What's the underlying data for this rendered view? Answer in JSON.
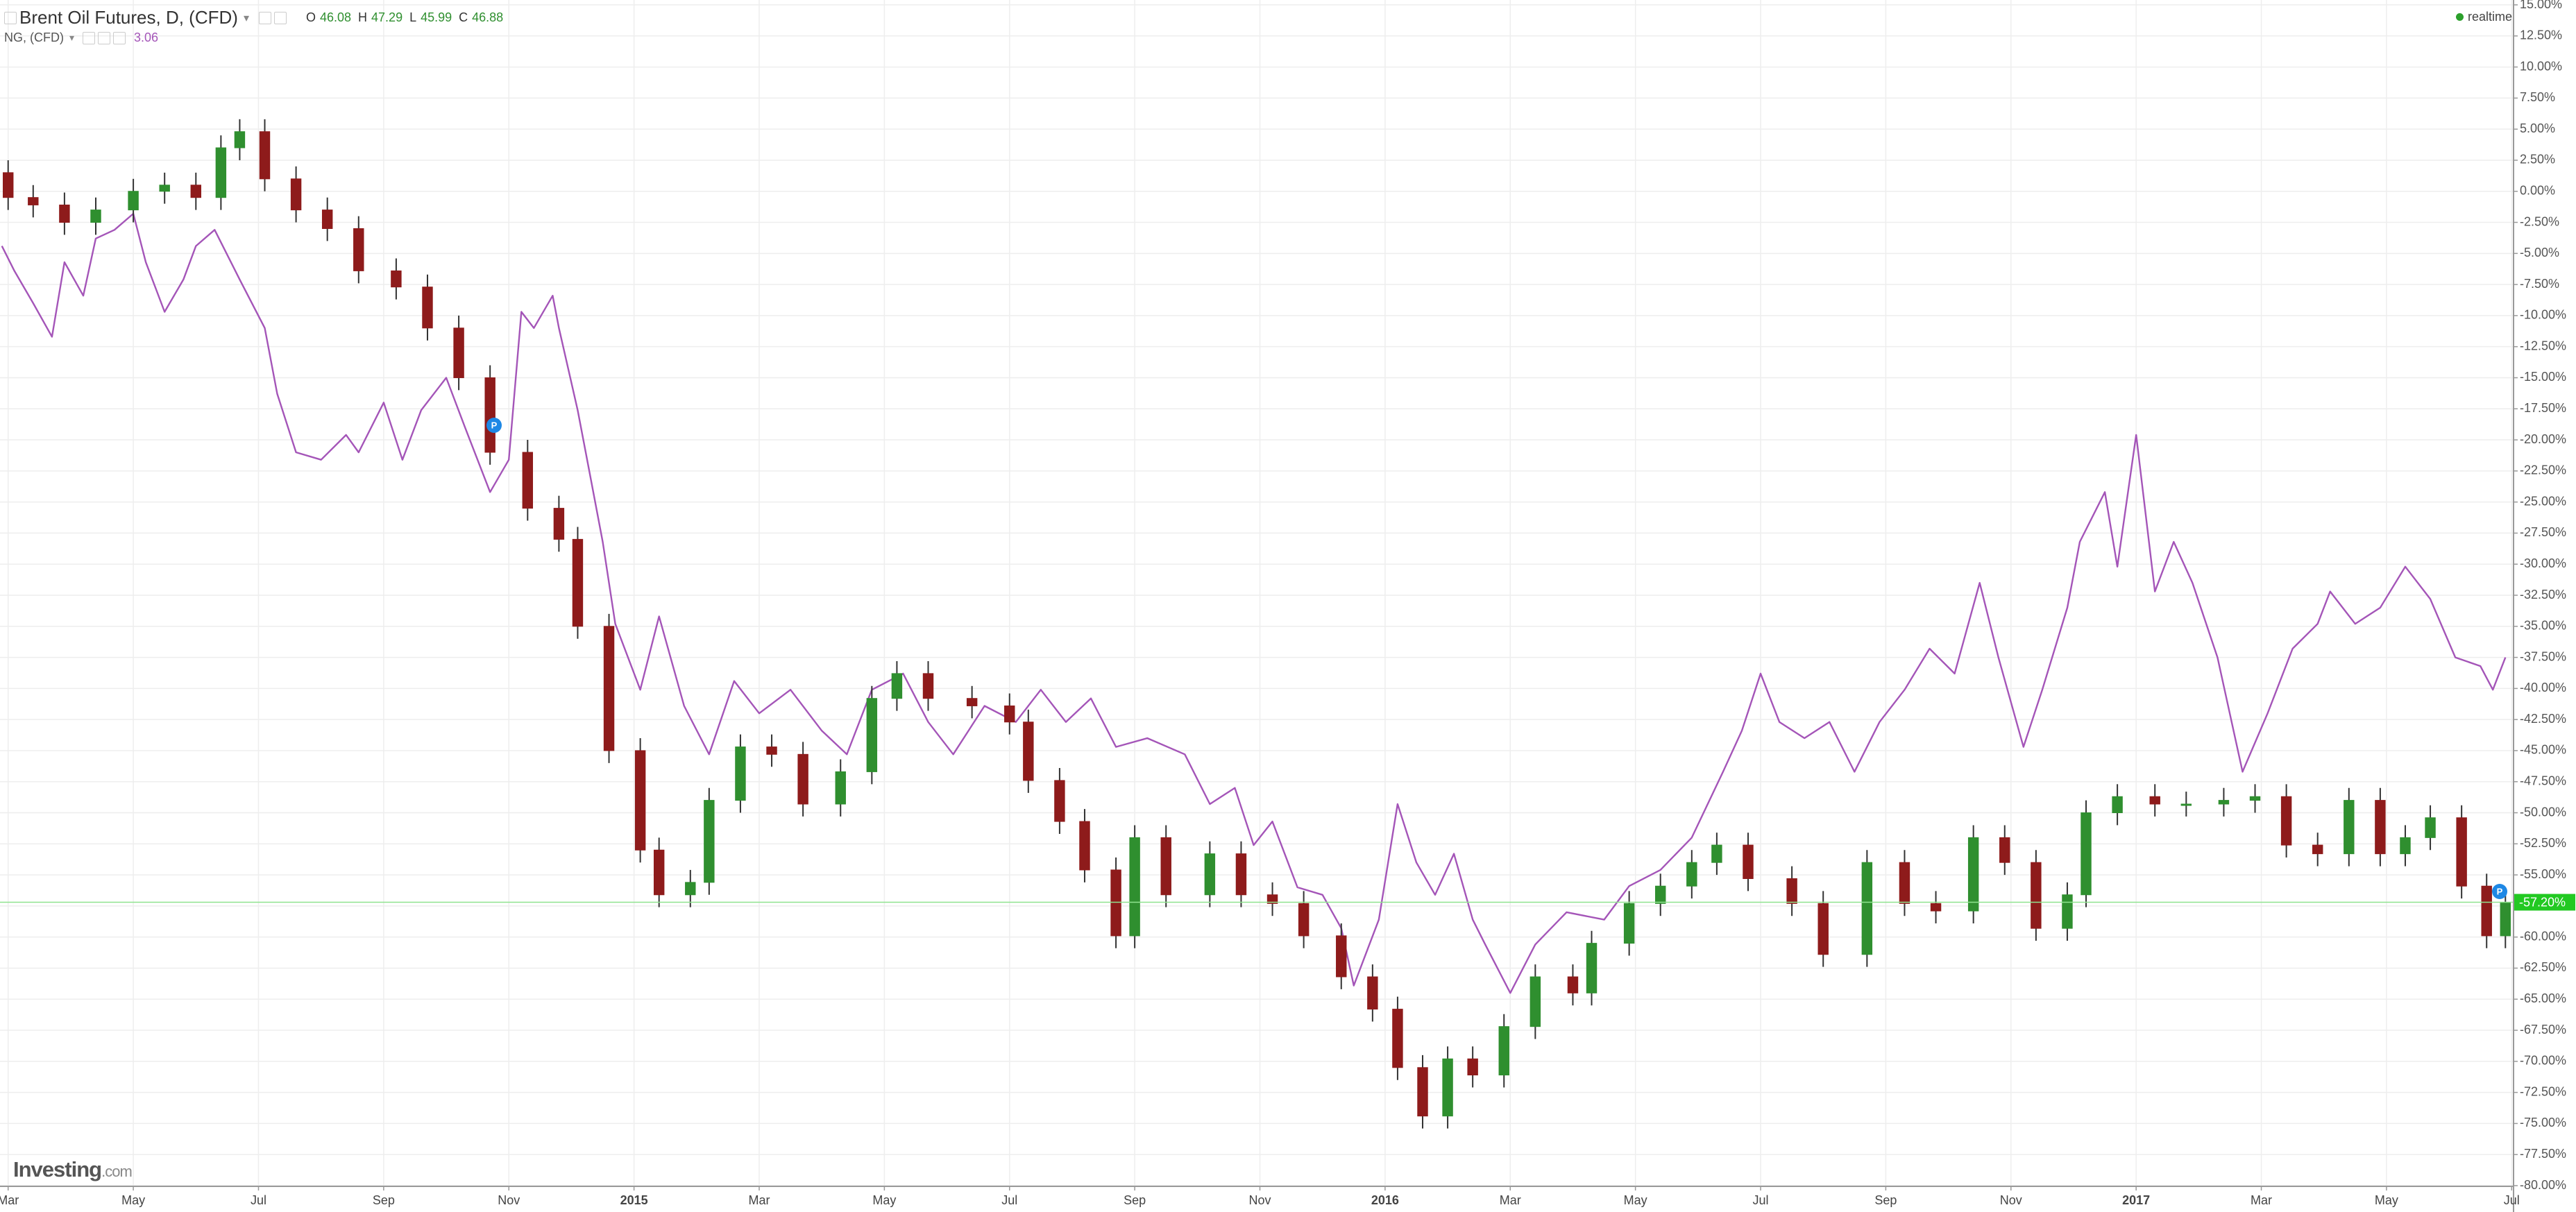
{
  "chart_data": {
    "type": "candlestick",
    "status": "realtime",
    "watermark": [
      "Investing",
      ".com"
    ],
    "xlim": [
      -0.13,
      40.03
    ],
    "xticks": [
      {
        "value": 0,
        "label": "Mar"
      },
      {
        "value": 2,
        "label": "May"
      },
      {
        "value": 4,
        "label": "Jul"
      },
      {
        "value": 6,
        "label": "Sep"
      },
      {
        "value": 8,
        "label": "Nov"
      },
      {
        "value": 10,
        "label": "2015"
      },
      {
        "value": 12,
        "label": "Mar"
      },
      {
        "value": 14,
        "label": "May"
      },
      {
        "value": 16,
        "label": "Jul"
      },
      {
        "value": 18,
        "label": "Sep"
      },
      {
        "value": 20,
        "label": "Nov"
      },
      {
        "value": 22,
        "label": "2016"
      },
      {
        "value": 24,
        "label": "Mar"
      },
      {
        "value": 26,
        "label": "May"
      },
      {
        "value": 28,
        "label": "Jul"
      },
      {
        "value": 30,
        "label": "Sep"
      },
      {
        "value": 32,
        "label": "Nov"
      },
      {
        "value": 34,
        "label": "2017"
      },
      {
        "value": 36,
        "label": "Mar"
      },
      {
        "value": 38,
        "label": "May"
      },
      {
        "value": 40,
        "label": "Jul"
      }
    ],
    "ylim": [
      -80,
      15
    ],
    "yticks": [
      {
        "value": 15,
        "label": "15.00%"
      },
      {
        "value": 12.5,
        "label": "12.50%"
      },
      {
        "value": 10,
        "label": "10.00%"
      },
      {
        "value": 7.5,
        "label": "7.50%"
      },
      {
        "value": 5,
        "label": "5.00%"
      },
      {
        "value": 2.5,
        "label": "2.50%"
      },
      {
        "value": 0,
        "label": "0.00%"
      },
      {
        "value": -2.5,
        "label": "-2.50%"
      },
      {
        "value": -5,
        "label": "-5.00%"
      },
      {
        "value": -7.5,
        "label": "-7.50%"
      },
      {
        "value": -10,
        "label": "-10.00%"
      },
      {
        "value": -12.5,
        "label": "-12.50%"
      },
      {
        "value": -15,
        "label": "-15.00%"
      },
      {
        "value": -17.5,
        "label": "-17.50%"
      },
      {
        "value": -20,
        "label": "-20.00%"
      },
      {
        "value": -22.5,
        "label": "-22.50%"
      },
      {
        "value": -25,
        "label": "-25.00%"
      },
      {
        "value": -27.5,
        "label": "-27.50%"
      },
      {
        "value": -30,
        "label": "-30.00%"
      },
      {
        "value": -32.5,
        "label": "-32.50%"
      },
      {
        "value": -35,
        "label": "-35.00%"
      },
      {
        "value": -37.5,
        "label": "-37.50%"
      },
      {
        "value": -40,
        "label": "-40.00%"
      },
      {
        "value": -42.5,
        "label": "-42.50%"
      },
      {
        "value": -45,
        "label": "-45.00%"
      },
      {
        "value": -47.5,
        "label": "-47.50%"
      },
      {
        "value": -50,
        "label": "-50.00%"
      },
      {
        "value": -52.5,
        "label": "-52.50%"
      },
      {
        "value": -55,
        "label": "-55.00%"
      },
      {
        "value": -57.5,
        "label": "-57.50%"
      },
      {
        "value": -60,
        "label": "-60.00%"
      },
      {
        "value": -62.5,
        "label": "-62.50%"
      },
      {
        "value": -65,
        "label": "-65.00%"
      },
      {
        "value": -67.5,
        "label": "-67.50%"
      },
      {
        "value": -70,
        "label": "-70.00%"
      },
      {
        "value": -72.5,
        "label": "-72.50%"
      },
      {
        "value": -75,
        "label": "-75.00%"
      },
      {
        "value": -77.5,
        "label": "-77.50%"
      },
      {
        "value": -80,
        "label": "-80.00%"
      }
    ],
    "grid": true,
    "series": [
      {
        "type": "candlestick",
        "name": "Brent Oil Futures, D, (CFD)",
        "up_color": "#2f8f2f",
        "down_color": "#8e1b1b",
        "last_color": "#22c922",
        "quote": [
          {
            "label": "O",
            "value": 46.08
          },
          {
            "label": "H",
            "value": 47.29
          },
          {
            "label": "L",
            "value": 45.99
          },
          {
            "label": "C",
            "value": 46.88
          }
        ],
        "last_label": "-57.20%",
        "x": [
          0.0,
          0.4,
          0.9,
          1.4,
          2.0,
          2.5,
          3.0,
          3.4,
          3.7,
          4.1,
          4.6,
          5.1,
          5.6,
          6.2,
          6.7,
          7.2,
          7.7,
          8.3,
          8.8,
          9.1,
          9.6,
          10.1,
          10.4,
          10.9,
          11.2,
          11.7,
          12.2,
          12.7,
          13.3,
          13.8,
          14.2,
          14.7,
          15.4,
          16.0,
          16.3,
          16.8,
          17.2,
          17.7,
          18.0,
          18.5,
          19.2,
          19.7,
          20.2,
          20.7,
          21.3,
          21.8,
          22.2,
          22.6,
          23.0,
          23.4,
          23.9,
          24.4,
          25.0,
          25.3,
          25.9,
          26.4,
          26.9,
          27.3,
          27.8,
          28.5,
          29.0,
          29.7,
          30.3,
          30.8,
          31.4,
          31.9,
          32.4,
          32.9,
          33.2,
          33.7,
          34.3,
          34.8,
          35.4,
          35.9,
          36.4,
          36.9,
          37.4,
          37.9,
          38.3,
          38.7,
          39.2,
          39.6,
          39.9
        ],
        "open": [
          1.5,
          -0.5,
          -1.1,
          -2.5,
          -1.5,
          0,
          0.5,
          -0.5,
          3.5,
          4.8,
          1,
          -1.5,
          -3,
          -6.4,
          -7.7,
          -11,
          -15,
          -21,
          -25.5,
          -28,
          -35,
          -45,
          -53,
          -56.6,
          -55.6,
          -49,
          -44.7,
          -45.3,
          -49.3,
          -46.7,
          -40.8,
          -38.8,
          -40.8,
          -41.4,
          -42.7,
          -47.4,
          -50.7,
          -54.6,
          -59.9,
          -52,
          -56.6,
          -53.3,
          -56.6,
          -57.3,
          -59.9,
          -63.2,
          -65.8,
          -70.5,
          -74.4,
          -69.8,
          -71.1,
          -67.2,
          -63.2,
          -64.5,
          -60.5,
          -57.3,
          -55.9,
          -54,
          -52.6,
          -55.3,
          -57.3,
          -61.4,
          -54,
          -57.3,
          -57.9,
          -52,
          -54,
          -59.3,
          -56.6,
          -50,
          -48.7,
          -49.3,
          -49.3,
          -49,
          -48.7,
          -52.6,
          -53.3,
          -49,
          -53.3,
          -52,
          -50.4,
          -55.9,
          -59.9
        ],
        "high": [
          2.5,
          0.5,
          -0.1,
          -0.5,
          1,
          1.5,
          1.5,
          4.5,
          5.8,
          5.8,
          2,
          -0.5,
          -2,
          -5.4,
          -6.7,
          -10,
          -14,
          -20,
          -24.5,
          -27,
          -34,
          -44,
          -52,
          -54.6,
          -48,
          -43.7,
          -43.7,
          -44.3,
          -45.7,
          -39.8,
          -37.8,
          -37.8,
          -39.8,
          -40.4,
          -41.7,
          -46.4,
          -49.7,
          -53.6,
          -51,
          -51,
          -52.3,
          -52.3,
          -55.6,
          -56.3,
          -58.9,
          -62.2,
          -64.8,
          -69.5,
          -68.8,
          -68.8,
          -66.2,
          -62.2,
          -62.2,
          -59.5,
          -56.3,
          -54.9,
          -53,
          -51.6,
          -51.6,
          -54.3,
          -56.3,
          -53,
          -53,
          -56.3,
          -51,
          -51,
          -53,
          -55.6,
          -49,
          -47.7,
          -47.7,
          -48.3,
          -48,
          -47.7,
          -47.7,
          -51.6,
          -48,
          -48,
          -51,
          -49.4,
          -49.4,
          -54.9,
          -56.2
        ],
        "low": [
          -1.5,
          -2.1,
          -3.5,
          -3.5,
          -2.5,
          -1,
          -1.5,
          -1.5,
          2.5,
          0,
          -2.5,
          -4,
          -7.4,
          -8.7,
          -12,
          -16,
          -22,
          -26.5,
          -29,
          -36,
          -46,
          -54,
          -57.6,
          -57.6,
          -56.6,
          -50,
          -46.3,
          -50.3,
          -50.3,
          -47.7,
          -41.8,
          -41.8,
          -42.4,
          -43.7,
          -48.4,
          -51.7,
          -55.6,
          -60.9,
          -60.9,
          -57.6,
          -57.6,
          -57.6,
          -58.3,
          -60.9,
          -64.2,
          -66.8,
          -71.5,
          -75.4,
          -75.4,
          -72.1,
          -72.1,
          -68.2,
          -65.5,
          -65.5,
          -61.5,
          -58.3,
          -56.9,
          -55,
          -56.3,
          -58.3,
          -62.4,
          -62.4,
          -58.3,
          -58.9,
          -58.9,
          -55,
          -60.3,
          -60.3,
          -57.6,
          -51,
          -50.3,
          -50.3,
          -50.3,
          -50,
          -53.6,
          -54.3,
          -54.3,
          -54.3,
          -54.3,
          -53,
          -56.9,
          -60.9,
          -60.9
        ],
        "close": [
          -0.5,
          -1.1,
          -2.5,
          -1.5,
          0,
          0.5,
          -0.5,
          3.5,
          4.8,
          1,
          -1.5,
          -3,
          -6.4,
          -7.7,
          -11,
          -15,
          -21,
          -25.5,
          -28,
          -35,
          -45,
          -53,
          -56.6,
          -55.6,
          -49,
          -44.7,
          -45.3,
          -49.3,
          -46.7,
          -40.8,
          -38.8,
          -40.8,
          -41.4,
          -42.7,
          -47.4,
          -50.7,
          -54.6,
          -59.9,
          -52,
          -56.6,
          -53.3,
          -56.6,
          -57.3,
          -59.9,
          -63.2,
          -65.8,
          -70.5,
          -74.4,
          -69.8,
          -71.1,
          -67.2,
          -63.2,
          -64.5,
          -60.5,
          -57.3,
          -55.9,
          -54,
          -52.6,
          -55.3,
          -57.3,
          -61.4,
          -54,
          -57.3,
          -57.9,
          -52,
          -54,
          -59.3,
          -56.6,
          -50,
          -48.7,
          -49.3,
          -49.3,
          -49,
          -48.7,
          -52.6,
          -53.3,
          -49,
          -53.3,
          -52,
          -50.4,
          -55.9,
          -59.9,
          -57.2
        ]
      },
      {
        "type": "line",
        "name": "NG, (CFD)",
        "color": "#a455b8",
        "last": 3.06,
        "x": [
          -0.1,
          0.1,
          0.4,
          0.7,
          0.9,
          1.2,
          1.4,
          1.7,
          2.0,
          2.2,
          2.5,
          2.8,
          3.0,
          3.3,
          3.7,
          4.1,
          4.3,
          4.6,
          5.0,
          5.4,
          5.6,
          6.0,
          6.3,
          6.6,
          7.0,
          7.3,
          7.7,
          8.0,
          8.2,
          8.4,
          8.7,
          8.8,
          9.1,
          9.3,
          9.5,
          9.7,
          10.1,
          10.4,
          10.8,
          11.2,
          11.6,
          12.0,
          12.5,
          13.0,
          13.4,
          13.8,
          14.3,
          14.7,
          15.1,
          15.6,
          16.1,
          16.5,
          16.9,
          17.3,
          17.7,
          18.2,
          18.8,
          19.2,
          19.6,
          19.9,
          20.2,
          20.6,
          21.0,
          21.3,
          21.5,
          21.9,
          22.2,
          22.5,
          22.8,
          23.1,
          23.4,
          23.6,
          24.0,
          24.4,
          24.9,
          25.5,
          25.9,
          26.4,
          26.9,
          27.4,
          27.7,
          28.0,
          28.3,
          28.7,
          29.1,
          29.5,
          29.9,
          30.3,
          30.7,
          31.1,
          31.5,
          31.8,
          32.2,
          32.5,
          32.9,
          33.1,
          33.5,
          33.7,
          34.0,
          34.3,
          34.6,
          34.9,
          35.3,
          35.7,
          36.1,
          36.5,
          36.9,
          37.1,
          37.5,
          37.9,
          38.3,
          38.7,
          39.1,
          39.5,
          39.7,
          39.9
        ],
        "values": [
          -4.4,
          -6.4,
          -9,
          -11.7,
          -5.7,
          -8.4,
          -3.8,
          -3.1,
          -1.8,
          -5.7,
          -9.7,
          -7.1,
          -4.4,
          -3.1,
          -7.1,
          -11,
          -16.3,
          -21,
          -21.6,
          -19.6,
          -21,
          -17,
          -21.6,
          -17.6,
          -15,
          -19,
          -24.2,
          -21.6,
          -9.7,
          -11,
          -8.4,
          -11,
          -17.6,
          -22.9,
          -28.2,
          -34.8,
          -40.1,
          -34.2,
          -41.4,
          -45.3,
          -39.4,
          -42,
          -40.1,
          -43.4,
          -45.3,
          -40.1,
          -38.8,
          -42.7,
          -45.3,
          -41.4,
          -42.7,
          -40.1,
          -42.7,
          -40.8,
          -44.7,
          -44,
          -45.3,
          -49.3,
          -48,
          -52.6,
          -50.7,
          -56,
          -56.6,
          -59.3,
          -63.9,
          -58.6,
          -49.3,
          -54,
          -56.6,
          -53.3,
          -58.6,
          -60.6,
          -64.5,
          -60.6,
          -58,
          -58.6,
          -55.9,
          -54.6,
          -52,
          -46.7,
          -43.4,
          -38.8,
          -42.7,
          -44,
          -42.7,
          -46.7,
          -42.7,
          -40.1,
          -36.8,
          -38.8,
          -31.5,
          -37.5,
          -44.7,
          -40.1,
          -33.5,
          -28.2,
          -24.2,
          -30.2,
          -19.6,
          -32.2,
          -28.2,
          -31.5,
          -37.5,
          -46.7,
          -42,
          -36.8,
          -34.8,
          -32.2,
          -34.8,
          -33.5,
          -30.2,
          -32.8,
          -37.5,
          -38.2,
          -40.1,
          -37.5
        ]
      }
    ]
  }
}
